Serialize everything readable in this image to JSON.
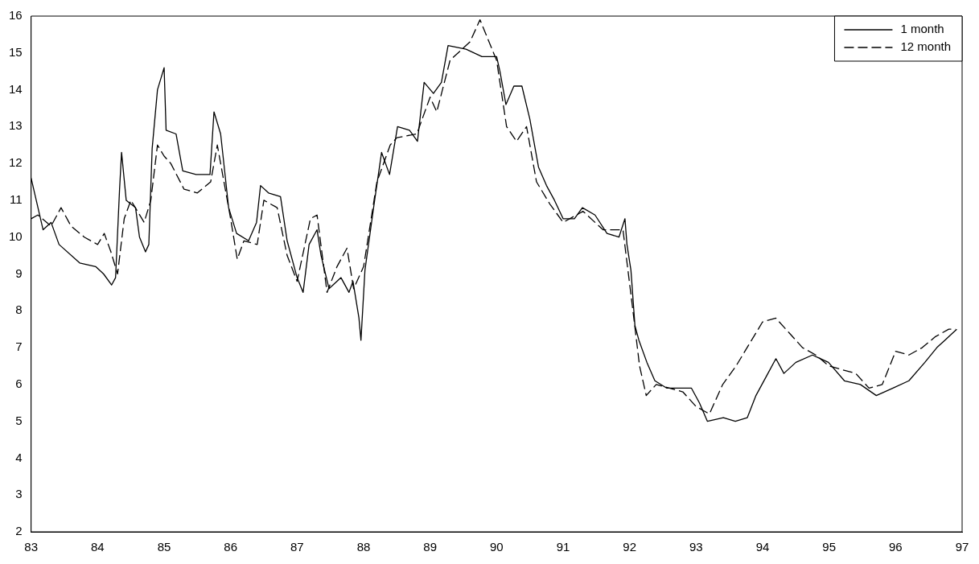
{
  "chart_data": {
    "type": "line",
    "xlim": [
      83,
      97
    ],
    "xticks": [
      83,
      84,
      85,
      86,
      87,
      88,
      89,
      90,
      91,
      92,
      93,
      94,
      95,
      96,
      97
    ],
    "ylim": [
      2,
      16
    ],
    "yticks": [
      2,
      3,
      4,
      5,
      6,
      7,
      8,
      9,
      10,
      11,
      12,
      13,
      14,
      15,
      16
    ],
    "grid": false,
    "legend": "top right",
    "marker": "none",
    "series": [
      {
        "name": "1 month",
        "color": "#000000",
        "line_style": "solid",
        "x": [
          83.0,
          83.18,
          83.3,
          83.42,
          83.73,
          83.97,
          84.09,
          84.21,
          84.27,
          84.33,
          84.36,
          84.43,
          84.57,
          84.63,
          84.72,
          84.77,
          84.82,
          84.9,
          85.0,
          85.03,
          85.18,
          85.28,
          85.48,
          85.69,
          85.75,
          85.85,
          85.97,
          86.09,
          86.27,
          86.39,
          86.45,
          86.57,
          86.75,
          86.85,
          87.0,
          87.09,
          87.18,
          87.3,
          87.36,
          87.48,
          87.66,
          87.78,
          87.84,
          87.93,
          87.96,
          88.02,
          88.15,
          88.27,
          88.39,
          88.51,
          88.69,
          88.81,
          88.91,
          89.05,
          89.17,
          89.27,
          89.54,
          89.78,
          90.0,
          90.05,
          90.14,
          90.26,
          90.38,
          90.5,
          90.63,
          90.75,
          90.87,
          91.0,
          91.17,
          91.29,
          91.48,
          91.66,
          91.84,
          91.93,
          91.96,
          92.02,
          92.08,
          92.14,
          92.26,
          92.38,
          92.56,
          92.93,
          93.05,
          93.17,
          93.41,
          93.59,
          93.77,
          93.9,
          94.08,
          94.2,
          94.32,
          94.5,
          94.75,
          94.99,
          95.23,
          95.47,
          95.71,
          95.96,
          96.2,
          96.44,
          96.62,
          96.74,
          96.86,
          96.92
        ],
        "values": [
          11.6,
          10.2,
          10.4,
          9.8,
          9.3,
          9.2,
          9.0,
          8.7,
          8.9,
          11.3,
          12.3,
          11.0,
          10.8,
          10.0,
          9.6,
          9.8,
          12.4,
          14.0,
          14.6,
          12.9,
          12.8,
          11.8,
          11.7,
          11.7,
          13.4,
          12.8,
          10.8,
          10.1,
          9.9,
          10.4,
          11.4,
          11.2,
          11.1,
          9.9,
          8.9,
          8.5,
          9.8,
          10.2,
          9.5,
          8.6,
          8.9,
          8.5,
          8.8,
          7.8,
          7.2,
          9.1,
          10.8,
          12.3,
          11.7,
          13.0,
          12.9,
          12.6,
          14.2,
          13.9,
          14.2,
          15.2,
          15.1,
          14.9,
          14.9,
          14.5,
          13.6,
          14.1,
          14.1,
          13.2,
          11.9,
          11.4,
          11.0,
          10.5,
          10.5,
          10.8,
          10.6,
          10.1,
          10.0,
          10.5,
          9.8,
          9.1,
          7.6,
          7.2,
          6.6,
          6.1,
          5.9,
          5.9,
          5.5,
          5.0,
          5.1,
          5.0,
          5.1,
          5.7,
          6.3,
          6.7,
          6.3,
          6.6,
          6.8,
          6.6,
          6.1,
          6.0,
          5.7,
          5.9,
          6.1,
          6.6,
          7.0,
          7.2,
          7.4,
          7.5
        ]
      },
      {
        "name": "12 month",
        "color": "#000000",
        "line_style": "dashed",
        "x": [
          83.0,
          83.1,
          83.3,
          83.45,
          83.6,
          83.8,
          84.0,
          84.1,
          84.2,
          84.3,
          84.4,
          84.5,
          84.7,
          84.8,
          84.9,
          85.0,
          85.1,
          85.3,
          85.5,
          85.7,
          85.8,
          86.0,
          86.1,
          86.2,
          86.4,
          86.5,
          86.7,
          86.85,
          87.0,
          87.2,
          87.3,
          87.45,
          87.6,
          87.75,
          87.85,
          88.0,
          88.2,
          88.4,
          88.5,
          88.8,
          89.0,
          89.1,
          89.3,
          89.6,
          89.75,
          90.0,
          90.15,
          90.3,
          90.45,
          90.6,
          90.8,
          91.0,
          91.3,
          91.6,
          91.9,
          92.05,
          92.15,
          92.25,
          92.4,
          92.8,
          93.0,
          93.2,
          93.4,
          93.6,
          93.8,
          94.0,
          94.2,
          94.4,
          94.6,
          94.8,
          95.0,
          95.2,
          95.4,
          95.6,
          95.8,
          96.0,
          96.2,
          96.4,
          96.6,
          96.8,
          96.9
        ],
        "values": [
          10.5,
          10.6,
          10.3,
          10.8,
          10.3,
          10.0,
          9.8,
          10.1,
          9.6,
          9.0,
          10.5,
          11.0,
          10.4,
          11.0,
          12.5,
          12.2,
          12.0,
          11.3,
          11.2,
          11.5,
          12.5,
          10.5,
          9.4,
          9.9,
          9.8,
          11.0,
          10.8,
          9.5,
          8.8,
          10.5,
          10.6,
          8.5,
          9.2,
          9.7,
          8.6,
          9.2,
          11.5,
          12.5,
          12.7,
          12.8,
          13.8,
          13.4,
          14.8,
          15.3,
          15.9,
          14.8,
          13.0,
          12.6,
          13.0,
          11.5,
          10.9,
          10.4,
          10.7,
          10.2,
          10.2,
          8.0,
          6.5,
          5.7,
          6.0,
          5.8,
          5.4,
          5.2,
          6.0,
          6.5,
          7.1,
          7.7,
          7.8,
          7.4,
          7.0,
          6.8,
          6.5,
          6.4,
          6.3,
          5.9,
          6.0,
          6.9,
          6.8,
          7.0,
          7.3,
          7.5,
          7.5
        ]
      }
    ]
  }
}
